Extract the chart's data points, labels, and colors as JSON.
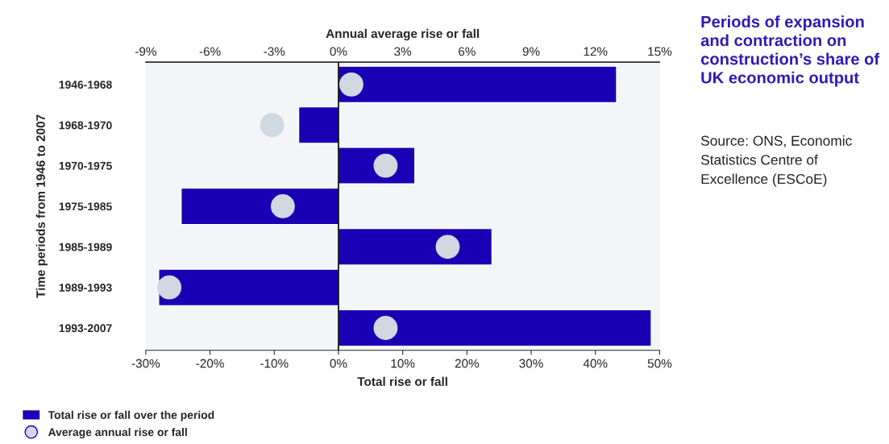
{
  "chart_data": {
    "type": "bar",
    "orientation": "horizontal",
    "title": "Periods of expansion\nand contraction on\nconstruction’s share of\nUK economic output",
    "annotations": [
      "Source: ONS, Economic\nStatistics Centre of\nExcellence (ESCoE)"
    ],
    "xlabel": "Total rise or fall",
    "x2label": "Annual average rise or fall",
    "ylabel": "Time periods from 1946 to 2007",
    "categories": [
      "1946-1968",
      "1968-1970",
      "1970-1975",
      "1975-1985",
      "1985-1989",
      "1989-1993",
      "1993-2007"
    ],
    "series": [
      {
        "name": "Total rise or fall over the period",
        "color": "#1a00b4",
        "values": [
          43.3,
          -6.2,
          11.9,
          -24.5,
          23.9,
          -28.0,
          48.7
        ]
      },
      {
        "name": "Average annual rise or fall",
        "type": "scatter",
        "axis": "x2",
        "color": "#d0d9e1",
        "values": [
          0.6,
          -3.1,
          2.2,
          -2.6,
          5.1,
          -7.9,
          2.2
        ]
      }
    ],
    "xlim": [
      -30,
      50
    ],
    "xticks": [
      {
        "value": -30,
        "label": "-30%"
      },
      {
        "value": -20,
        "label": "-20%"
      },
      {
        "value": -10,
        "label": "-10%"
      },
      {
        "value": 0,
        "label": "0%"
      },
      {
        "value": 10,
        "label": "10%"
      },
      {
        "value": 20,
        "label": "20%"
      },
      {
        "value": 30,
        "label": "30%"
      },
      {
        "value": 40,
        "label": "40%"
      },
      {
        "value": 50,
        "label": "50%"
      }
    ],
    "x2lim": [
      -9,
      15
    ],
    "x2ticks": [
      {
        "value": -9,
        "label": "-9%"
      },
      {
        "value": -6,
        "label": "-6%"
      },
      {
        "value": -3,
        "label": "-3%"
      },
      {
        "value": 0,
        "label": "0%"
      },
      {
        "value": 3,
        "label": "3%"
      },
      {
        "value": 6,
        "label": "6%"
      },
      {
        "value": 9,
        "label": "9%"
      },
      {
        "value": 12,
        "label": "12%"
      },
      {
        "value": 15,
        "label": "15%"
      }
    ],
    "ref_lines": [
      {
        "axis": "x",
        "value": 0,
        "color": "#000000"
      }
    ],
    "legend": "bottom left",
    "grid": false,
    "marker": "circle"
  }
}
